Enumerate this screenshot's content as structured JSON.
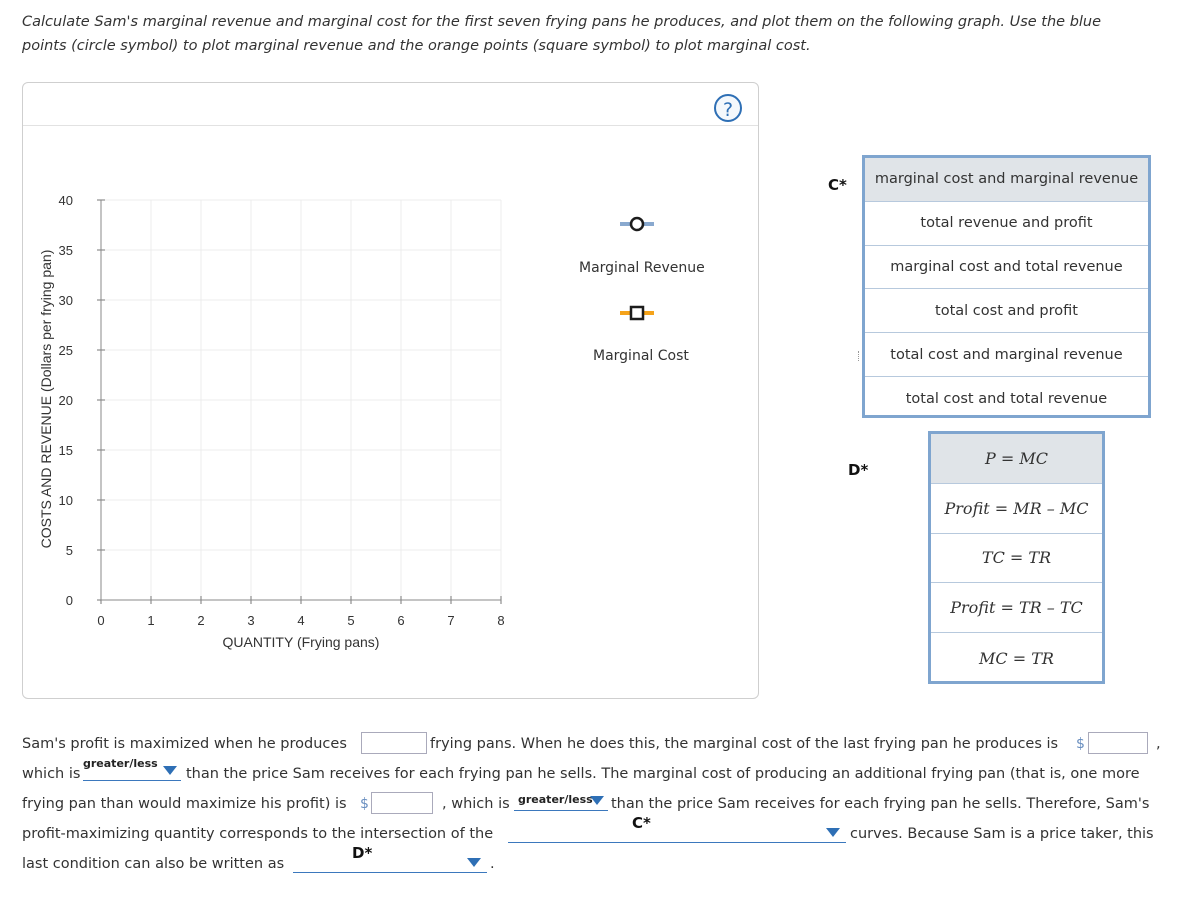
{
  "instructions": {
    "line1": "Calculate Sam's marginal revenue and marginal cost for the first seven frying pans he produces, and plot them on the following graph. Use the blue",
    "line2": "points (circle symbol) to plot marginal revenue and the orange points (square symbol) to plot marginal cost."
  },
  "graph": {
    "help_label": "?",
    "ylabel": "COSTS AND REVENUE (Dollars per frying pan)",
    "xlabel": "QUANTITY (Frying pans)",
    "x_ticks": [
      "0",
      "1",
      "2",
      "3",
      "4",
      "5",
      "6",
      "7",
      "8"
    ],
    "y_ticks": [
      "0",
      "5",
      "10",
      "15",
      "20",
      "25",
      "30",
      "35",
      "40"
    ],
    "xlim": [
      0,
      8
    ],
    "ylim": [
      0,
      40
    ],
    "grid": true
  },
  "legend": {
    "mr_label": "Marginal Revenue",
    "mc_label": "Marginal Cost"
  },
  "colors": {
    "mr_line": "#89a9cf",
    "mr_marker_border": "#1c1c1c",
    "mc_line": "#f5a31a",
    "mc_marker_border": "#1c1c1c",
    "listbox_border": "#7fa5cf",
    "caret": "#2e6fb5"
  },
  "dropdown_c": {
    "label": "C*",
    "options": [
      "marginal cost and marginal revenue",
      "total revenue and profit",
      "marginal cost and total revenue",
      "total cost and profit",
      "total cost and marginal revenue",
      "total cost and total revenue"
    ]
  },
  "dropdown_d": {
    "label": "D*",
    "options": [
      "P = MC",
      "Profit = MR – MC",
      "TC = TR",
      "Profit = TR – TC",
      "MC = TR"
    ]
  },
  "paragraph": {
    "p1": "Sam's profit is maximized when he produces",
    "p2": "frying pans. When he does this, the marginal cost of the last frying pan he produces is",
    "dollar": "$",
    "comma": ",",
    "p3": "which is",
    "greater_less": "greater/less",
    "p4": "than the price Sam receives for each frying pan he sells. The marginal cost of producing an additional frying pan (that is, one more",
    "p5": "frying pan than would maximize his profit) is",
    "p6": ", which is",
    "p7": "than the price Sam receives for each frying pan he sells. Therefore, Sam's",
    "p8": "profit-maximizing quantity corresponds to the intersection of the",
    "p9": "curves. Because Sam is a price taker, this",
    "p10": "last condition can also be written as",
    "period": ".",
    "c_star": "C*",
    "d_star": "D*"
  }
}
